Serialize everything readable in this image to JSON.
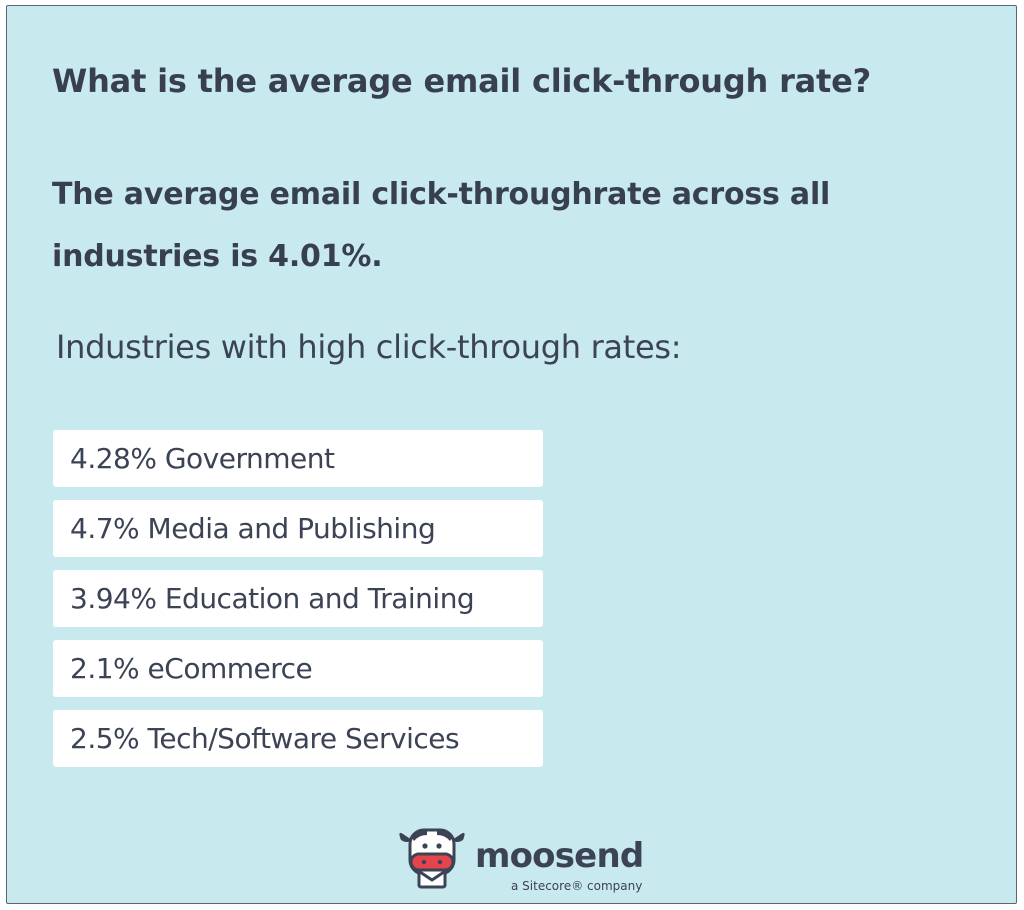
{
  "heading": "What is the average email click-through rate?",
  "summary": "The average email click-throughrate across all industries is 4.01%.",
  "subheading": "Industries with high click-through rates:",
  "industries": [
    {
      "label": "4.28% Government"
    },
    {
      "label": "4.7% Media and Publishing"
    },
    {
      "label": "3.94% Education and Training"
    },
    {
      "label": "2.1% eCommerce"
    },
    {
      "label": "2.5% Tech/Software Services"
    }
  ],
  "brand": {
    "name": "moosend",
    "tagline": "a Sitecore® company",
    "icon": "cow-logo-icon"
  },
  "colors": {
    "background": "#c8eaee",
    "text": "#373f50",
    "item_background": "#ffffff",
    "logo_accent": "#e5444c"
  }
}
